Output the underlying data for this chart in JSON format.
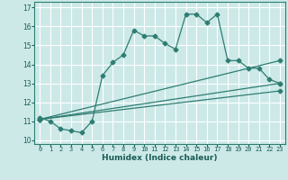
{
  "title": "",
  "xlabel": "Humidex (Indice chaleur)",
  "bg_color": "#cce9e8",
  "grid_color": "#ffffff",
  "line_color": "#2e7d72",
  "xlim": [
    -0.5,
    23.5
  ],
  "ylim": [
    9.8,
    17.3
  ],
  "xticks": [
    0,
    1,
    2,
    3,
    4,
    5,
    6,
    7,
    8,
    9,
    10,
    11,
    12,
    13,
    14,
    15,
    16,
    17,
    18,
    19,
    20,
    21,
    22,
    23
  ],
  "yticks": [
    10,
    11,
    12,
    13,
    14,
    15,
    16,
    17
  ],
  "line1_x": [
    0,
    1,
    2,
    3,
    4,
    5,
    6,
    7,
    8,
    9,
    10,
    11,
    12,
    13,
    14,
    15,
    16,
    17,
    18,
    19,
    20,
    21,
    22,
    23
  ],
  "line1_y": [
    11.2,
    11.0,
    10.6,
    10.5,
    10.4,
    11.0,
    13.4,
    14.1,
    14.5,
    15.8,
    15.5,
    15.5,
    15.1,
    14.8,
    16.65,
    16.65,
    16.2,
    16.65,
    14.2,
    14.2,
    13.8,
    13.8,
    13.2,
    13.0
  ],
  "line2_x": [
    0,
    23
  ],
  "line2_y": [
    11.1,
    14.2
  ],
  "line3_x": [
    0,
    23
  ],
  "line3_y": [
    11.1,
    13.0
  ],
  "line4_x": [
    0,
    23
  ],
  "line4_y": [
    11.1,
    12.6
  ],
  "markersize": 2.5
}
